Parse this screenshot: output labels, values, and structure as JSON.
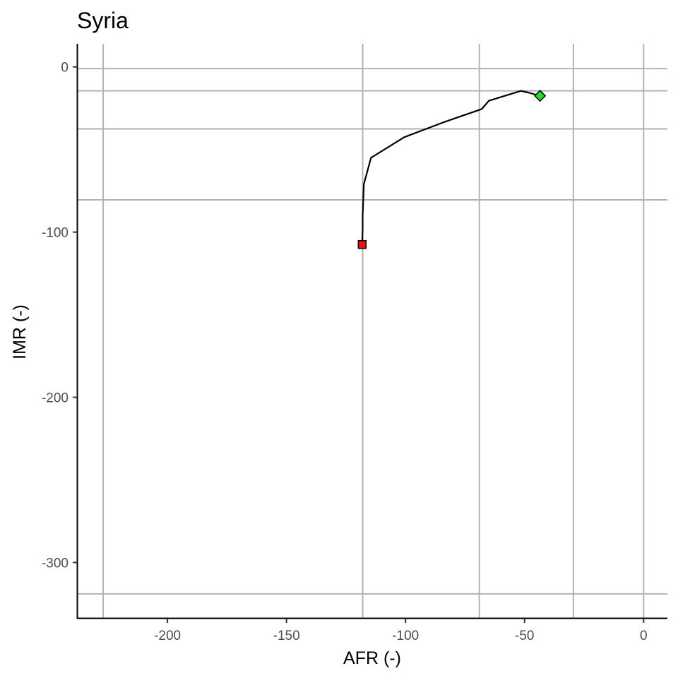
{
  "chart_data": {
    "type": "line",
    "title": "Syria",
    "xlabel": "AFR (-)",
    "ylabel": "IMR (-)",
    "xlim": [
      -238,
      10
    ],
    "ylim": [
      -334,
      14
    ],
    "x_ticks": [
      -200,
      -150,
      -100,
      -50,
      0
    ],
    "y_ticks": [
      0,
      -100,
      -200,
      -300
    ],
    "x_tick_labels": [
      "-200",
      "-150",
      "-100",
      "-50",
      "0"
    ],
    "y_tick_labels": [
      "0",
      "-100",
      "-200",
      "-300"
    ],
    "vertical_reference_lines": [
      -227,
      -118,
      -69,
      -29.5,
      0
    ],
    "horizontal_reference_lines": [
      -1,
      -14.5,
      -37.5,
      -80.5,
      -319
    ],
    "grid": false,
    "colors": {
      "line": "#000000",
      "reference_lines": "#b3b3b3",
      "start_marker": "#ee1111",
      "end_marker": "#22dd22"
    },
    "series": [
      {
        "x": [
          -118.2,
          -118.0,
          -118.0,
          -117.5,
          -114.5,
          -100.5,
          -84,
          -68,
          -65,
          -56,
          -51.5,
          -48.5,
          -43.5
        ],
        "y": [
          -107.5,
          -98,
          -90,
          -71,
          -55,
          -42.5,
          -33.5,
          -25.5,
          -20.5,
          -16.5,
          -14.5,
          -15.5,
          -17.5
        ]
      }
    ],
    "start_marker": {
      "shape": "square",
      "x": -118.2,
      "y": -107.5
    },
    "end_marker": {
      "shape": "diamond",
      "x": -43.5,
      "y": -17.5
    }
  }
}
